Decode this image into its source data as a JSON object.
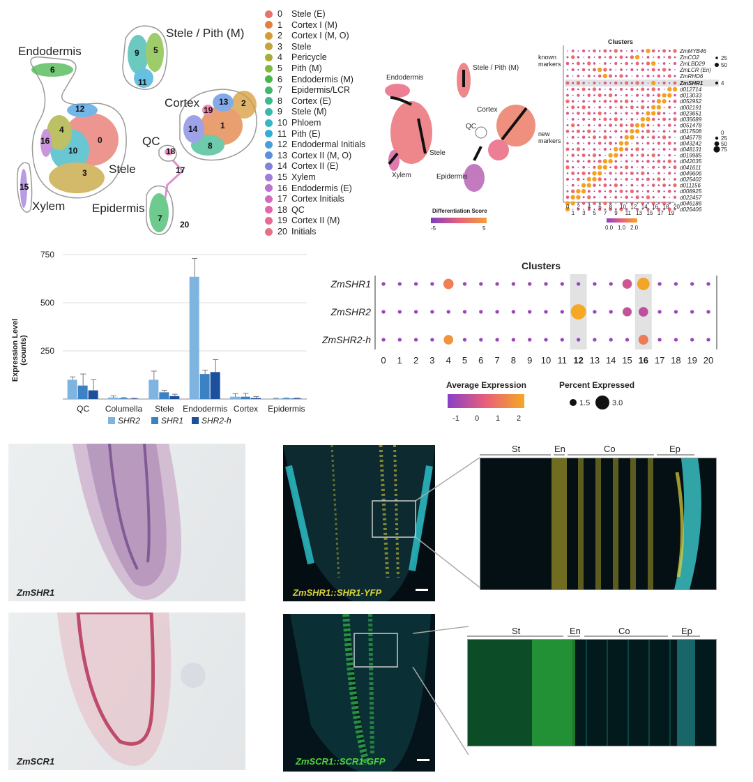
{
  "umap_main": {
    "labels": [
      "Endodermis",
      "Stele / Pith (M)",
      "Cortex",
      "QC",
      "Stele",
      "Xylem",
      "Epidermis"
    ],
    "cluster_numbers": [
      "0",
      "1",
      "2",
      "3",
      "4",
      "5",
      "6",
      "7",
      "8",
      "9",
      "10",
      "11",
      "12",
      "13",
      "14",
      "15",
      "16",
      "17",
      "18",
      "19",
      "20"
    ]
  },
  "cluster_legend": [
    {
      "num": "0",
      "name": "Stele (E)",
      "color": "#e8736a"
    },
    {
      "num": "1",
      "name": "Cortex I (M)",
      "color": "#e2803f"
    },
    {
      "num": "2",
      "name": "Cortex I (M, O)",
      "color": "#d69b3a"
    },
    {
      "num": "3",
      "name": "Stele",
      "color": "#c5a43a"
    },
    {
      "num": "4",
      "name": "Pericycle",
      "color": "#a8ad34"
    },
    {
      "num": "5",
      "name": "Pith (M)",
      "color": "#7ebb3a"
    },
    {
      "num": "6",
      "name": "Endodermis (M)",
      "color": "#45b649"
    },
    {
      "num": "7",
      "name": "Epidermis/LCR",
      "color": "#3fb96a"
    },
    {
      "num": "8",
      "name": "Cortex (E)",
      "color": "#3db98f"
    },
    {
      "num": "9",
      "name": "Stele (M)",
      "color": "#3ab8ab"
    },
    {
      "num": "10",
      "name": "Phloem",
      "color": "#36b5c3"
    },
    {
      "num": "11",
      "name": "Pith (E)",
      "color": "#33acd6"
    },
    {
      "num": "12",
      "name": "Endodermal Initials",
      "color": "#46a0e0"
    },
    {
      "num": "13",
      "name": "Cortex II (M, O)",
      "color": "#5c8fe0"
    },
    {
      "num": "14",
      "name": "Cortex II (E)",
      "color": "#7e84de"
    },
    {
      "num": "15",
      "name": "Xylem",
      "color": "#a07bd8"
    },
    {
      "num": "16",
      "name": "Endodermis (E)",
      "color": "#bc72cf"
    },
    {
      "num": "17",
      "name": "Cortex Initials",
      "color": "#d26bc0"
    },
    {
      "num": "18",
      "name": "QC",
      "color": "#e167ac"
    },
    {
      "num": "19",
      "name": "Cortex II (M)",
      "color": "#e96a95"
    },
    {
      "num": "20",
      "name": "Initials",
      "color": "#ea6e80"
    }
  ],
  "umap_diff": {
    "labels": [
      "Endodermis",
      "Stele / Pith (M)",
      "Cortex",
      "QC",
      "Stele",
      "Xylem",
      "Epidermis"
    ],
    "colorbar_title": "Differentiation Score",
    "colorbar_ticks": [
      "-5",
      "5"
    ]
  },
  "dotplot_small": {
    "title": "Clusters",
    "known_label": "known\nmarkers",
    "new_label": "new\nmarkers",
    "known_genes": [
      "ZmMYB46",
      "ZmCO2",
      "ZmLBD29",
      "ZmLCR (En)",
      "ZmRHD6"
    ],
    "highlight_gene": "ZmSHR1",
    "new_genes": [
      "d012714",
      "d013033",
      "d052952",
      "d002191",
      "d023651",
      "d035689",
      "d051478",
      "d017508",
      "d046778",
      "d043242",
      "d048131",
      "d019985",
      "d042035",
      "d041611",
      "d049606",
      "d025402",
      "d011156",
      "d008925",
      "d022457",
      "d046186",
      "d026406"
    ],
    "x_ticks_top": [
      "0",
      "2",
      "4",
      "6",
      "8",
      "10",
      "12",
      "14",
      "16",
      "18",
      "20"
    ],
    "x_ticks_bottom": [
      "1",
      "3",
      "5",
      "7",
      "9",
      "11",
      "13",
      "15",
      "17",
      "19"
    ],
    "size_legend_known": [
      "25",
      "50"
    ],
    "size_legend_highlight": [
      "4"
    ],
    "size_legend_new": [
      "0",
      "25",
      "50",
      "75"
    ],
    "colorbar_ticks": [
      "0.0",
      "1.0",
      "2.0"
    ]
  },
  "bar_chart": {
    "ylabel": "Expression Level\n(counts)",
    "legend_colors": {
      "SHR2": "#7fb3e0",
      "SHR1": "#3a82c4",
      "SHR2-h": "#1c4f9c"
    }
  },
  "chart_data": [
    {
      "type": "bar",
      "title": "",
      "xlabel": "",
      "ylabel": "Expression Level\n(counts)",
      "ylim": [
        0,
        750
      ],
      "yticks": [
        "250",
        "500",
        "750"
      ],
      "categories": [
        "QC",
        "Columella",
        "Stele",
        "Endodermis",
        "Cortex",
        "Epidermis"
      ],
      "series": [
        {
          "name": "SHR2",
          "values": [
            100,
            8,
            100,
            635,
            12,
            2
          ],
          "errors": [
            15,
            8,
            45,
            95,
            15,
            2
          ]
        },
        {
          "name": "SHR1",
          "values": [
            70,
            4,
            35,
            130,
            12,
            3
          ],
          "errors": [
            60,
            4,
            10,
            20,
            18,
            2
          ]
        },
        {
          "name": "SHR2-h",
          "values": [
            45,
            2,
            15,
            140,
            5,
            3
          ],
          "errors": [
            55,
            2,
            10,
            65,
            8,
            2
          ]
        }
      ],
      "legend": "bottom",
      "grid": true
    },
    {
      "type": "scatter",
      "title": "Clusters",
      "genes": [
        "ZmSHR1",
        "ZmSHR2",
        "ZmSHR2-h"
      ],
      "clusters": [
        "0",
        "1",
        "2",
        "3",
        "4",
        "5",
        "6",
        "7",
        "8",
        "9",
        "10",
        "11",
        "12",
        "13",
        "14",
        "15",
        "16",
        "17",
        "18",
        "19",
        "20"
      ],
      "highlighted_clusters": [
        "12",
        "16"
      ],
      "avg_expression": [
        [
          -1,
          -1,
          -1,
          -1,
          1.3,
          -1,
          -1,
          -1,
          -1,
          -1,
          -1,
          -1,
          -1,
          -1,
          -1,
          0.0,
          2.2,
          -1,
          -1,
          -1,
          -1
        ],
        [
          -1,
          -1,
          -1,
          -1,
          -1,
          -1,
          -1,
          -1,
          -1,
          -1,
          -1,
          -1,
          2.3,
          -1,
          -1,
          -0.2,
          -0.3,
          -1,
          -1,
          -1,
          -1
        ],
        [
          -1,
          -1,
          -1,
          -1,
          1.8,
          -1,
          -1,
          -1,
          -1,
          -1,
          -1,
          -1,
          -1,
          -1,
          -1,
          -1,
          1.2,
          -1,
          -1,
          -1,
          -1
        ]
      ],
      "pct_expressed": [
        [
          0.2,
          0.2,
          0.2,
          0.2,
          1.5,
          0.2,
          0.2,
          0.2,
          0.2,
          0.2,
          0.2,
          0.2,
          0.2,
          0.2,
          0.2,
          1.3,
          2.2,
          0.2,
          0.2,
          0.2,
          0.2
        ],
        [
          0.2,
          0.2,
          0.2,
          0.2,
          0.2,
          0.2,
          0.2,
          0.2,
          0.2,
          0.2,
          0.2,
          0.2,
          3.3,
          0.2,
          0.2,
          1.2,
          1.3,
          0.2,
          0.2,
          0.2,
          0.2
        ],
        [
          0.2,
          0.2,
          0.2,
          0.2,
          1.3,
          0.2,
          0.2,
          0.2,
          0.2,
          0.2,
          0.2,
          0.2,
          0.2,
          0.2,
          0.2,
          0.2,
          1.4,
          0.2,
          0.2,
          0.2,
          0.2
        ]
      ],
      "color_legend_title": "Average Expression",
      "color_ticks": [
        "-1",
        "0",
        "1",
        "2"
      ],
      "size_legend_title": "Percent Expressed",
      "size_ticks": [
        "1.5",
        "3.0"
      ]
    }
  ],
  "photos": {
    "insitu_top": "ZmSHR1",
    "insitu_bottom": "ZmSCR1",
    "fluor_top": "ZmSHR1::SHR1-YFP",
    "fluor_bottom": "ZmSCR1::SCR1-GFP",
    "tissue_labels": [
      "St",
      "En",
      "Co",
      "Ep"
    ]
  }
}
